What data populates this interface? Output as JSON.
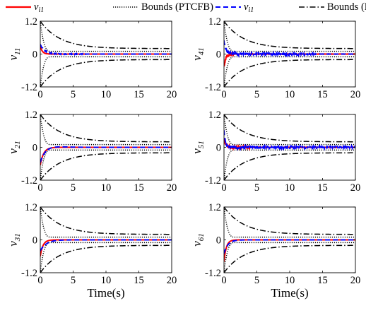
{
  "legend": [
    {
      "label_main": "ν",
      "label_sub": "i1",
      "style": "solid",
      "color": "#ff0000"
    },
    {
      "label": "Bounds (PTCFB)",
      "style": "dotted",
      "color": "#000000"
    },
    {
      "label_main": "ν",
      "label_sub": "i1",
      "style": "dashed",
      "color": "#0000ff"
    },
    {
      "label": "Bounds (FTDSC)",
      "style": "dashdot",
      "color": "#000000"
    }
  ],
  "xlabel": "Time(s)",
  "colors": {
    "red": "#ff0000",
    "blue": "#0000ff",
    "black": "#000000"
  },
  "chart_data": [
    {
      "type": "line",
      "ylabel_main": "ν",
      "ylabel_sub": "11",
      "xlim": [
        0,
        20
      ],
      "ylim": [
        -1.2,
        1.2
      ],
      "xticks": [
        0,
        5,
        10,
        15,
        20
      ],
      "yticks": [
        -1.2,
        0,
        1.2
      ],
      "ytick_labels": [
        "-1.2",
        "0",
        "1.2"
      ],
      "red": {
        "v0": 0.3,
        "tau": 0.3,
        "ripple": 0.005
      },
      "blue": {
        "v0": 0.35,
        "tau": 0.7,
        "ripple": 0.02,
        "noise_until": 7
      }
    },
    {
      "type": "line",
      "ylabel_main": "ν",
      "ylabel_sub": "41",
      "xlim": [
        0,
        20
      ],
      "ylim": [
        -1.2,
        1.2
      ],
      "xticks": [
        0,
        5,
        10,
        15,
        20
      ],
      "yticks": [
        -1.2,
        0,
        1.2
      ],
      "ytick_labels": [
        "-1.2",
        "0",
        "1.2"
      ],
      "red": {
        "v0": -0.5,
        "tau": 0.25,
        "ripple": 0.06
      },
      "blue": {
        "v0": 0.5,
        "tau": 0.3,
        "ripple": 0.06,
        "noise_until": 14
      }
    },
    {
      "type": "line",
      "ylabel_main": "ν",
      "ylabel_sub": "21",
      "xlim": [
        0,
        20
      ],
      "ylim": [
        -1.2,
        1.2
      ],
      "xticks": [
        0,
        5,
        10,
        15,
        20
      ],
      "yticks": [
        -1.2,
        0,
        1.2
      ],
      "ytick_labels": [
        "-1.2",
        "0",
        "1.2"
      ],
      "red": {
        "v0": -0.65,
        "tau": 0.5,
        "ripple": 0.0
      },
      "blue": {
        "v0": -0.55,
        "tau": 1.1,
        "ripple": 0.01,
        "overshoot": 0.12
      }
    },
    {
      "type": "line",
      "ylabel_main": "ν",
      "ylabel_sub": "51",
      "xlim": [
        0,
        20
      ],
      "ylim": [
        -1.2,
        1.2
      ],
      "xticks": [
        0,
        5,
        10,
        15,
        20
      ],
      "yticks": [
        -1.2,
        0,
        1.2
      ],
      "ytick_labels": [
        "-1.2",
        "0",
        "1.2"
      ],
      "red": {
        "v0": 0.35,
        "tau": 0.3,
        "ripple": 0.07,
        "noise_until": 4
      },
      "blue": {
        "v0": 0.6,
        "tau": 0.2,
        "ripple": 0.06,
        "noise_until": 20
      }
    },
    {
      "type": "line",
      "ylabel_main": "ν",
      "ylabel_sub": "31",
      "xlim": [
        0,
        20
      ],
      "ylim": [
        -1.2,
        1.2
      ],
      "xticks": [
        0,
        5,
        10,
        15,
        20
      ],
      "yticks": [
        -1.2,
        0,
        1.2
      ],
      "ytick_labels": [
        "-1.2",
        "0",
        "1.2"
      ],
      "red": {
        "v0": -0.6,
        "tau": 0.4,
        "ripple": 0.0
      },
      "blue": {
        "v0": -0.4,
        "tau": 0.9,
        "ripple": 0.008
      }
    },
    {
      "type": "line",
      "ylabel_main": "ν",
      "ylabel_sub": "61",
      "xlim": [
        0,
        20
      ],
      "ylim": [
        -1.2,
        1.2
      ],
      "xticks": [
        0,
        5,
        10,
        15,
        20
      ],
      "yticks": [
        -1.2,
        0,
        1.2
      ],
      "ytick_labels": [
        "-1.2",
        "0",
        "1.2"
      ],
      "red": {
        "v0": -0.8,
        "tau": 0.35,
        "ripple": 0.0
      },
      "blue": {
        "v0": -0.5,
        "tau": 0.6,
        "ripple": 0.008
      }
    }
  ],
  "bounds": {
    "ptcfb": {
      "rho0": 1.2,
      "rho_inf": 0.1,
      "T": 1.6
    },
    "ftdsc": {
      "rho0": 1.2,
      "rho_inf": 0.2,
      "T": 20
    }
  }
}
